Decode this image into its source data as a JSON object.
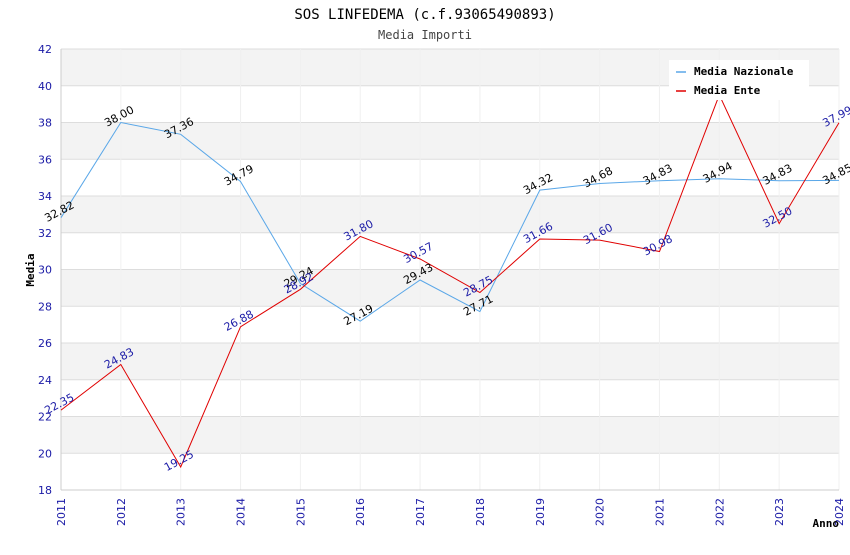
{
  "chart_data": {
    "type": "line",
    "title": "SOS LINFEDEMA (c.f.93065490893)",
    "subtitle": "Media Importi",
    "xlabel": "Anno",
    "ylabel": "Media",
    "ylim": [
      18,
      42
    ],
    "yticks": [
      18,
      20,
      22,
      24,
      26,
      28,
      30,
      32,
      34,
      36,
      38,
      40,
      42
    ],
    "categories": [
      "2011",
      "2012",
      "2013",
      "2014",
      "2015",
      "2016",
      "2017",
      "2018",
      "2019",
      "2020",
      "2021",
      "2022",
      "2023",
      "2024"
    ],
    "grid": true,
    "legend_position": "top-right",
    "series": [
      {
        "name": "Media Nazionale",
        "color": "#5aa7e8",
        "values": [
          32.82,
          38.0,
          37.36,
          34.79,
          29.24,
          27.19,
          29.43,
          27.71,
          34.32,
          34.68,
          34.83,
          34.94,
          34.83,
          34.85
        ],
        "labels": [
          "32.82",
          "38.00",
          "37.36",
          "34.79",
          "29.24",
          "27.19",
          "29.43",
          "27.71",
          "34.32",
          "34.68",
          "34.83",
          "34.94",
          "34.83",
          "34.85"
        ]
      },
      {
        "name": "Media Ente",
        "color": "#e00000",
        "values": [
          22.35,
          24.83,
          19.25,
          26.88,
          28.92,
          31.8,
          30.57,
          28.75,
          31.66,
          31.6,
          30.98,
          39.5,
          32.5,
          37.99
        ],
        "labels": [
          "22.35",
          "24.83",
          "19.25",
          "26.88",
          "28.92",
          "31.80",
          "30.57",
          "28.75",
          "31.66",
          "31.60",
          "30.98",
          "",
          "32.50",
          "37.99"
        ]
      }
    ]
  }
}
